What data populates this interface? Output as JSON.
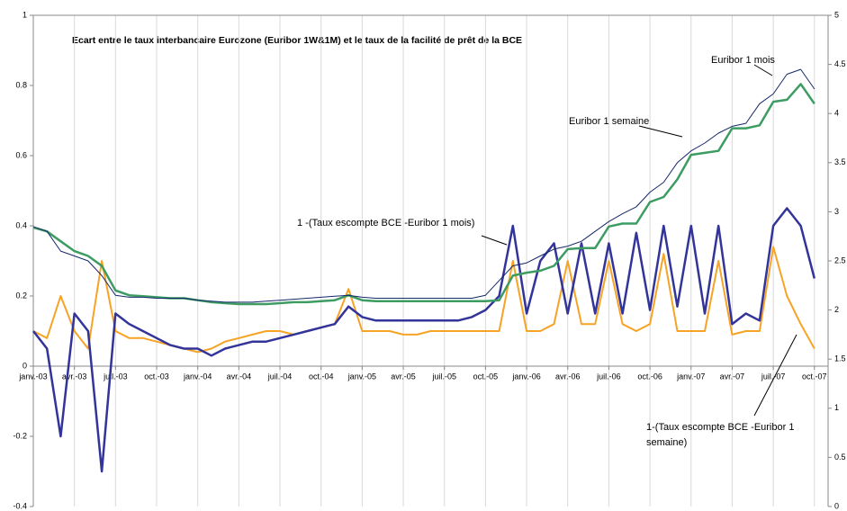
{
  "chart_data": {
    "type": "line",
    "title": "Ecart entre le taux interbancaire Eurozone (Euribor 1W&1M) et le taux de la facilité de prêt de la BCE",
    "categories": [
      "janv.-03",
      null,
      null,
      "avr.-03",
      null,
      null,
      "juil.-03",
      null,
      null,
      "oct.-03",
      null,
      null,
      "janv.-04",
      null,
      null,
      "avr.-04",
      null,
      null,
      "juil.-04",
      null,
      null,
      "oct.-04",
      null,
      null,
      "janv.-05",
      null,
      null,
      "avr.-05",
      null,
      null,
      "juil.-05",
      null,
      null,
      "oct.-05",
      null,
      null,
      "janv.-06",
      null,
      null,
      "avr.-06",
      null,
      null,
      "juil.-06",
      null,
      null,
      "oct.-06",
      null,
      null,
      "janv.-07",
      null,
      null,
      "avr.-07",
      null,
      null,
      "juil.-07",
      null,
      null,
      "oct.-07"
    ],
    "ylim": [
      -0.4,
      1
    ],
    "yticks": [
      -0.4,
      -0.2,
      0,
      0.2,
      0.4,
      0.6,
      0.8,
      1
    ],
    "y2lim": [
      0,
      5
    ],
    "y2ticks": [
      0,
      0.5,
      1,
      1.5,
      2,
      2.5,
      3,
      3.5,
      4,
      4.5,
      5
    ],
    "annotations": [
      "Euribor 1 mois",
      "Euribor 1 semaine",
      "1 -(Taux escompte BCE -Euribor 1 mois)",
      "1-(Taux escompte BCE -Euribor 1",
      "semaine)"
    ],
    "series": [
      {
        "color": "#f7a325",
        "axis": "y",
        "values": [
          0.1,
          0.08,
          0.2,
          0.1,
          0.05,
          0.3,
          0.1,
          0.08,
          0.08,
          0.07,
          0.06,
          0.05,
          0.04,
          0.05,
          0.07,
          0.08,
          0.09,
          0.1,
          0.1,
          0.09,
          0.1,
          0.11,
          0.12,
          0.22,
          0.1,
          0.1,
          0.1,
          0.09,
          0.09,
          0.1,
          0.1,
          0.1,
          0.1,
          0.1,
          0.1,
          0.3,
          0.1,
          0.1,
          0.12,
          0.3,
          0.12,
          0.12,
          0.3,
          0.12,
          0.1,
          0.12,
          0.32,
          0.1,
          0.1,
          0.1,
          0.3,
          0.09,
          0.1,
          0.1,
          0.34,
          0.2,
          0.12,
          0.05
        ]
      },
      {
        "color": "#33349a",
        "axis": "y",
        "values": [
          0.1,
          0.05,
          -0.2,
          0.15,
          0.1,
          -0.3,
          0.15,
          0.12,
          0.1,
          0.08,
          0.06,
          0.05,
          0.05,
          0.03,
          0.05,
          0.06,
          0.07,
          0.07,
          0.08,
          0.09,
          0.1,
          0.11,
          0.12,
          0.17,
          0.14,
          0.13,
          0.13,
          0.13,
          0.13,
          0.13,
          0.13,
          0.13,
          0.14,
          0.16,
          0.2,
          0.4,
          0.15,
          0.3,
          0.35,
          0.15,
          0.35,
          0.15,
          0.35,
          0.15,
          0.38,
          0.16,
          0.4,
          0.17,
          0.4,
          0.15,
          0.4,
          0.12,
          0.15,
          0.13,
          0.4,
          0.45,
          0.4,
          0.25
        ]
      },
      {
        "color": "#3c9c62",
        "axis": "y2",
        "values": [
          2.84,
          2.8,
          2.7,
          2.6,
          2.55,
          2.45,
          2.2,
          2.15,
          2.14,
          2.13,
          2.12,
          2.12,
          2.1,
          2.08,
          2.07,
          2.06,
          2.06,
          2.06,
          2.07,
          2.08,
          2.08,
          2.09,
          2.1,
          2.15,
          2.1,
          2.09,
          2.09,
          2.09,
          2.09,
          2.09,
          2.09,
          2.09,
          2.09,
          2.09,
          2.1,
          2.35,
          2.38,
          2.4,
          2.45,
          2.62,
          2.63,
          2.63,
          2.85,
          2.88,
          2.88,
          3.1,
          3.15,
          3.33,
          3.58,
          3.6,
          3.62,
          3.85,
          3.85,
          3.88,
          4.12,
          4.14,
          4.3,
          4.1
        ]
      },
      {
        "color": "#14286a",
        "axis": "y2",
        "values": [
          2.85,
          2.8,
          2.6,
          2.55,
          2.5,
          2.35,
          2.15,
          2.13,
          2.13,
          2.12,
          2.12,
          2.12,
          2.1,
          2.09,
          2.08,
          2.08,
          2.08,
          2.09,
          2.1,
          2.11,
          2.12,
          2.13,
          2.14,
          2.15,
          2.13,
          2.12,
          2.12,
          2.12,
          2.12,
          2.12,
          2.12,
          2.12,
          2.12,
          2.15,
          2.3,
          2.45,
          2.48,
          2.55,
          2.62,
          2.65,
          2.7,
          2.8,
          2.9,
          2.98,
          3.05,
          3.2,
          3.3,
          3.5,
          3.62,
          3.7,
          3.8,
          3.87,
          3.9,
          4.1,
          4.2,
          4.4,
          4.45,
          4.25
        ]
      }
    ]
  }
}
